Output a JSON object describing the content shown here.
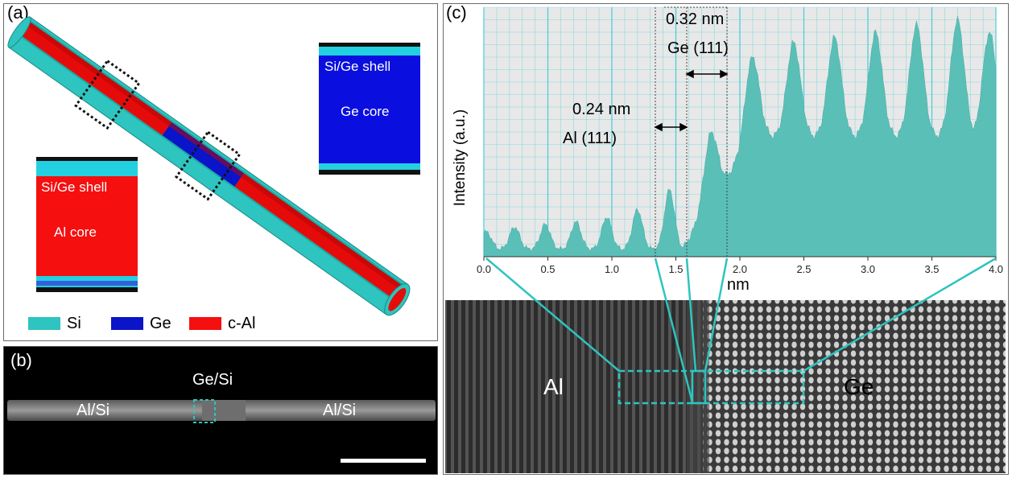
{
  "panel_a": {
    "label": "(a)",
    "inset_ge": {
      "shell": "Si/Ge shell",
      "core": "Ge core"
    },
    "inset_al": {
      "shell": "Si/Ge shell",
      "core": "Al core"
    },
    "legend": [
      {
        "name": "Si",
        "color": "#2ec4bf"
      },
      {
        "name": "Ge",
        "color": "#0a14c8"
      },
      {
        "name": "c-Al",
        "color": "#f50f0f"
      }
    ]
  },
  "panel_b": {
    "label": "(b)",
    "left_segment": "Al/Si",
    "center_segment": "Ge/Si",
    "right_segment": "Al/Si"
  },
  "panel_c": {
    "label": "(c)",
    "image_labels": {
      "left": "Al",
      "right": "Ge"
    },
    "annotations": [
      {
        "spacing": "0.32 nm",
        "plane": "Ge (111)"
      },
      {
        "spacing": "0.24 nm",
        "plane": "Al (111)"
      }
    ]
  },
  "chart_data": {
    "type": "area",
    "xlabel": "nm",
    "ylabel": "Intensity (a.u.)",
    "xlim": [
      0,
      4.0
    ],
    "ylim": [
      0,
      1
    ],
    "x_ticks": [
      "0.0",
      "0.5",
      "1.0",
      "1.5",
      "2.0",
      "2.5",
      "3.0",
      "3.5",
      "4.0"
    ],
    "grid": true,
    "peaks_al": [
      {
        "x": 0.02,
        "y": 0.1
      },
      {
        "x": 0.24,
        "y": 0.12
      },
      {
        "x": 0.48,
        "y": 0.13
      },
      {
        "x": 0.72,
        "y": 0.14
      },
      {
        "x": 0.96,
        "y": 0.16
      },
      {
        "x": 1.2,
        "y": 0.19
      },
      {
        "x": 1.45,
        "y": 0.27
      }
    ],
    "peaks_ge": [
      {
        "x": 1.78,
        "y": 0.5
      },
      {
        "x": 2.1,
        "y": 0.8
      },
      {
        "x": 2.42,
        "y": 0.86
      },
      {
        "x": 2.74,
        "y": 0.88
      },
      {
        "x": 3.06,
        "y": 0.9
      },
      {
        "x": 3.38,
        "y": 0.93
      },
      {
        "x": 3.7,
        "y": 0.95
      },
      {
        "x": 3.95,
        "y": 0.9
      }
    ],
    "baseline_ge": 0.45
  }
}
